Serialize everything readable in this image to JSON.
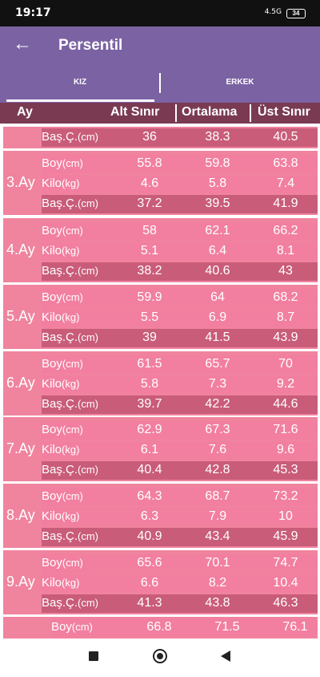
{
  "status": {
    "time": "19:17",
    "signal": "4.5G",
    "battery": "34"
  },
  "appbar": {
    "title": "Persentil",
    "back_icon": "←"
  },
  "tabs": [
    {
      "label": "KIZ",
      "active": true
    },
    {
      "label": "ERKEK",
      "active": false
    }
  ],
  "columns": {
    "month": "Ay",
    "low": "Alt Sınır",
    "mid": "Ortalama",
    "high": "Üst Sınır"
  },
  "partial_top": {
    "label": "Baş.Ç.",
    "unit": "(cm)",
    "values": [
      "36",
      "38.3",
      "40.5"
    ]
  },
  "groups": [
    {
      "month": "3.Ay",
      "rows": [
        {
          "label": "Boy",
          "unit": "(cm)",
          "values": [
            "55.8",
            "59.8",
            "63.8"
          ]
        },
        {
          "label": "Kilo",
          "unit": "(kg)",
          "values": [
            "4.6",
            "5.8",
            "7.4"
          ]
        },
        {
          "label": "Baş.Ç.",
          "unit": "(cm)",
          "values": [
            "37.2",
            "39.5",
            "41.9"
          ]
        }
      ]
    },
    {
      "month": "4.Ay",
      "rows": [
        {
          "label": "Boy",
          "unit": "(cm)",
          "values": [
            "58",
            "62.1",
            "66.2"
          ]
        },
        {
          "label": "Kilo",
          "unit": "(kg)",
          "values": [
            "5.1",
            "6.4",
            "8.1"
          ]
        },
        {
          "label": "Baş.Ç.",
          "unit": "(cm)",
          "values": [
            "38.2",
            "40.6",
            "43"
          ]
        }
      ]
    },
    {
      "month": "5.Ay",
      "rows": [
        {
          "label": "Boy",
          "unit": "(cm)",
          "values": [
            "59.9",
            "64",
            "68.2"
          ]
        },
        {
          "label": "Kilo",
          "unit": "(kg)",
          "values": [
            "5.5",
            "6.9",
            "8.7"
          ]
        },
        {
          "label": "Baş.Ç.",
          "unit": "(cm)",
          "values": [
            "39",
            "41.5",
            "43.9"
          ]
        }
      ]
    },
    {
      "month": "6.Ay",
      "rows": [
        {
          "label": "Boy",
          "unit": "(cm)",
          "values": [
            "61.5",
            "65.7",
            "70"
          ]
        },
        {
          "label": "Kilo",
          "unit": "(kg)",
          "values": [
            "5.8",
            "7.3",
            "9.2"
          ]
        },
        {
          "label": "Baş.Ç.",
          "unit": "(cm)",
          "values": [
            "39.7",
            "42.2",
            "44.6"
          ]
        }
      ]
    },
    {
      "month": "7.Ay",
      "rows": [
        {
          "label": "Boy",
          "unit": "(cm)",
          "values": [
            "62.9",
            "67.3",
            "71.6"
          ]
        },
        {
          "label": "Kilo",
          "unit": "(kg)",
          "values": [
            "6.1",
            "7.6",
            "9.6"
          ]
        },
        {
          "label": "Baş.Ç.",
          "unit": "(cm)",
          "values": [
            "40.4",
            "42.8",
            "45.3"
          ]
        }
      ]
    },
    {
      "month": "8.Ay",
      "rows": [
        {
          "label": "Boy",
          "unit": "(cm)",
          "values": [
            "64.3",
            "68.7",
            "73.2"
          ]
        },
        {
          "label": "Kilo",
          "unit": "(kg)",
          "values": [
            "6.3",
            "7.9",
            "10"
          ]
        },
        {
          "label": "Baş.Ç.",
          "unit": "(cm)",
          "values": [
            "40.9",
            "43.4",
            "45.9"
          ]
        }
      ]
    },
    {
      "month": "9.Ay",
      "rows": [
        {
          "label": "Boy",
          "unit": "(cm)",
          "values": [
            "65.6",
            "70.1",
            "74.7"
          ]
        },
        {
          "label": "Kilo",
          "unit": "(kg)",
          "values": [
            "6.6",
            "8.2",
            "10.4"
          ]
        },
        {
          "label": "Baş.Ç.",
          "unit": "(cm)",
          "values": [
            "41.3",
            "43.8",
            "46.3"
          ]
        }
      ]
    }
  ],
  "partial_bottom": {
    "label": "Boy",
    "unit": "(cm)",
    "values": [
      "66.8",
      "71.5",
      "76.1"
    ]
  },
  "navbar": {
    "recents_icon": "square-icon",
    "home_icon": "circle-icon",
    "back_icon": "triangle-icon"
  }
}
